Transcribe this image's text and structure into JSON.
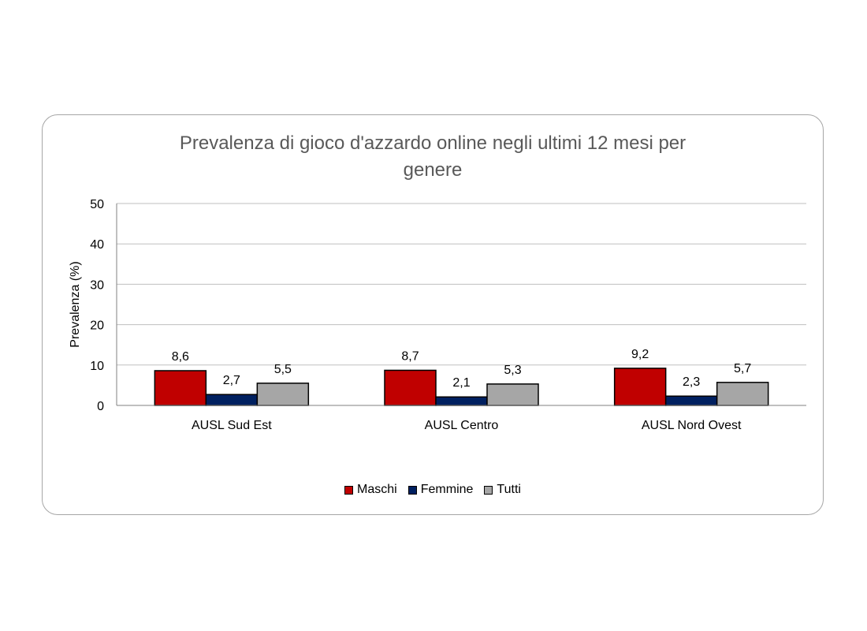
{
  "chart_data": {
    "type": "bar",
    "title": "Prevalenza di gioco d'azzardo online negli ultimi 12 mesi per genere",
    "xlabel": "",
    "ylabel": "Prevalenza (%)",
    "ylim": [
      0,
      50
    ],
    "yticks": [
      0,
      10,
      20,
      30,
      40,
      50
    ],
    "grid": true,
    "legend_position": "bottom",
    "categories": [
      "AUSL Sud Est",
      "AUSL Centro",
      "AUSL Nord Ovest"
    ],
    "series": [
      {
        "name": "Maschi",
        "color": "#c00000",
        "values": [
          8.6,
          8.7,
          9.2
        ],
        "labels": [
          "8,6",
          "8,7",
          "9,2"
        ]
      },
      {
        "name": "Femmine",
        "color": "#002060",
        "values": [
          2.7,
          2.1,
          2.3
        ],
        "labels": [
          "2,7",
          "2,1",
          "2,3"
        ]
      },
      {
        "name": "Tutti",
        "color": "#a6a6a6",
        "values": [
          5.5,
          5.3,
          5.7
        ],
        "labels": [
          "5,5",
          "5,3",
          "5,7"
        ]
      }
    ]
  }
}
